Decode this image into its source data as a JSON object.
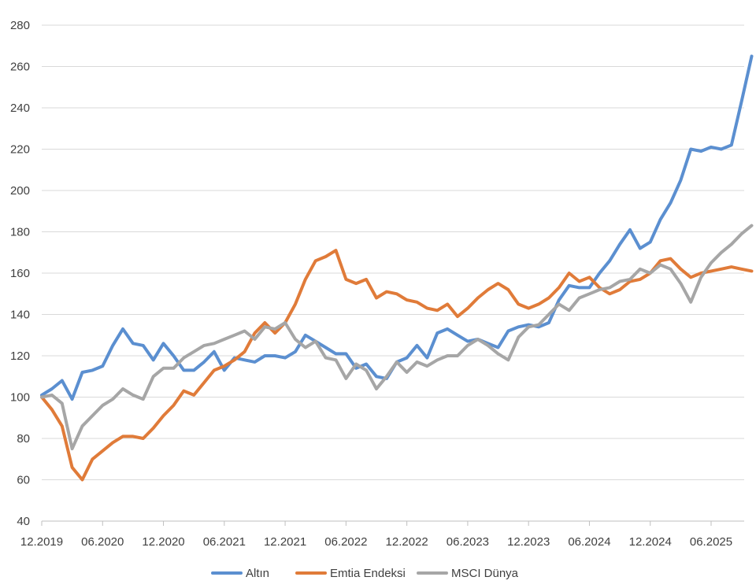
{
  "chart_data": {
    "type": "line",
    "title": "",
    "xlabel": "",
    "ylabel": "",
    "ylim": [
      40,
      280
    ],
    "yticks": [
      40,
      60,
      80,
      100,
      120,
      140,
      160,
      180,
      200,
      220,
      240,
      260,
      280
    ],
    "xlim": [
      "12.2019",
      "10.2025"
    ],
    "xticks": [
      "12.2019",
      "06.2020",
      "12.2020",
      "06.2021",
      "12.2021",
      "06.2022",
      "12.2022",
      "06.2023",
      "12.2023",
      "06.2024",
      "12.2024",
      "06.2025"
    ],
    "grid": "horizontal",
    "legend_position": "bottom",
    "series": [
      {
        "name": "Altın",
        "color": "#5b8fd0",
        "points": [
          [
            "12.2019",
            101
          ],
          [
            "01.2020",
            104
          ],
          [
            "02.2020",
            108
          ],
          [
            "03.2020",
            99
          ],
          [
            "04.2020",
            112
          ],
          [
            "05.2020",
            113
          ],
          [
            "06.2020",
            115
          ],
          [
            "07.2020",
            125
          ],
          [
            "08.2020",
            133
          ],
          [
            "09.2020",
            126
          ],
          [
            "10.2020",
            125
          ],
          [
            "11.2020",
            118
          ],
          [
            "12.2020",
            126
          ],
          [
            "01.2021",
            120
          ],
          [
            "02.2021",
            113
          ],
          [
            "03.2021",
            113
          ],
          [
            "04.2021",
            117
          ],
          [
            "05.2021",
            122
          ],
          [
            "06.2021",
            113
          ],
          [
            "07.2021",
            119
          ],
          [
            "08.2021",
            118
          ],
          [
            "09.2021",
            117
          ],
          [
            "10.2021",
            120
          ],
          [
            "11.2021",
            120
          ],
          [
            "12.2021",
            119
          ],
          [
            "01.2022",
            122
          ],
          [
            "02.2022",
            130
          ],
          [
            "03.2022",
            127
          ],
          [
            "04.2022",
            124
          ],
          [
            "05.2022",
            121
          ],
          [
            "06.2022",
            121
          ],
          [
            "07.2022",
            114
          ],
          [
            "08.2022",
            116
          ],
          [
            "09.2022",
            110
          ],
          [
            "10.2022",
            109
          ],
          [
            "11.2022",
            117
          ],
          [
            "12.2022",
            119
          ],
          [
            "01.2023",
            125
          ],
          [
            "02.2023",
            119
          ],
          [
            "03.2023",
            131
          ],
          [
            "04.2023",
            133
          ],
          [
            "05.2023",
            130
          ],
          [
            "06.2023",
            127
          ],
          [
            "07.2023",
            128
          ],
          [
            "08.2023",
            126
          ],
          [
            "09.2023",
            124
          ],
          [
            "10.2023",
            132
          ],
          [
            "11.2023",
            134
          ],
          [
            "12.2023",
            135
          ],
          [
            "01.2024",
            134
          ],
          [
            "02.2024",
            136
          ],
          [
            "03.2024",
            147
          ],
          [
            "04.2024",
            154
          ],
          [
            "05.2024",
            153
          ],
          [
            "06.2024",
            153
          ],
          [
            "07.2024",
            160
          ],
          [
            "08.2024",
            166
          ],
          [
            "09.2024",
            174
          ],
          [
            "10.2024",
            181
          ],
          [
            "11.2024",
            172
          ],
          [
            "12.2024",
            175
          ],
          [
            "01.2025",
            186
          ],
          [
            "02.2025",
            194
          ],
          [
            "03.2025",
            205
          ],
          [
            "04.2025",
            220
          ],
          [
            "05.2025",
            219
          ],
          [
            "06.2025",
            221
          ],
          [
            "07.2025",
            220
          ],
          [
            "08.2025",
            222
          ],
          [
            "09.2025",
            243
          ],
          [
            "10.2025",
            265
          ]
        ]
      },
      {
        "name": "Emtia Endeksi",
        "color": "#e07b39",
        "points": [
          [
            "12.2019",
            100
          ],
          [
            "01.2020",
            94
          ],
          [
            "02.2020",
            86
          ],
          [
            "03.2020",
            66
          ],
          [
            "04.2020",
            60
          ],
          [
            "05.2020",
            70
          ],
          [
            "06.2020",
            74
          ],
          [
            "07.2020",
            78
          ],
          [
            "08.2020",
            81
          ],
          [
            "09.2020",
            81
          ],
          [
            "10.2020",
            80
          ],
          [
            "11.2020",
            85
          ],
          [
            "12.2020",
            91
          ],
          [
            "01.2021",
            96
          ],
          [
            "02.2021",
            103
          ],
          [
            "03.2021",
            101
          ],
          [
            "04.2021",
            107
          ],
          [
            "05.2021",
            113
          ],
          [
            "06.2021",
            115
          ],
          [
            "07.2021",
            118
          ],
          [
            "08.2021",
            122
          ],
          [
            "09.2021",
            131
          ],
          [
            "10.2021",
            136
          ],
          [
            "11.2021",
            131
          ],
          [
            "12.2021",
            136
          ],
          [
            "01.2022",
            145
          ],
          [
            "02.2022",
            157
          ],
          [
            "03.2022",
            166
          ],
          [
            "04.2022",
            168
          ],
          [
            "05.2022",
            171
          ],
          [
            "06.2022",
            157
          ],
          [
            "07.2022",
            155
          ],
          [
            "08.2022",
            157
          ],
          [
            "09.2022",
            148
          ],
          [
            "10.2022",
            151
          ],
          [
            "11.2022",
            150
          ],
          [
            "12.2022",
            147
          ],
          [
            "01.2023",
            146
          ],
          [
            "02.2023",
            143
          ],
          [
            "03.2023",
            142
          ],
          [
            "04.2023",
            145
          ],
          [
            "05.2023",
            139
          ],
          [
            "06.2023",
            143
          ],
          [
            "07.2023",
            148
          ],
          [
            "08.2023",
            152
          ],
          [
            "09.2023",
            155
          ],
          [
            "10.2023",
            152
          ],
          [
            "11.2023",
            145
          ],
          [
            "12.2023",
            143
          ],
          [
            "01.2024",
            145
          ],
          [
            "02.2024",
            148
          ],
          [
            "03.2024",
            153
          ],
          [
            "04.2024",
            160
          ],
          [
            "05.2024",
            156
          ],
          [
            "06.2024",
            158
          ],
          [
            "07.2024",
            153
          ],
          [
            "08.2024",
            150
          ],
          [
            "09.2024",
            152
          ],
          [
            "10.2024",
            156
          ],
          [
            "11.2024",
            157
          ],
          [
            "12.2024",
            160
          ],
          [
            "01.2025",
            166
          ],
          [
            "02.2025",
            167
          ],
          [
            "03.2025",
            162
          ],
          [
            "04.2025",
            158
          ],
          [
            "05.2025",
            160
          ],
          [
            "06.2025",
            161
          ],
          [
            "07.2025",
            162
          ],
          [
            "08.2025",
            163
          ],
          [
            "09.2025",
            162
          ],
          [
            "10.2025",
            161
          ]
        ]
      },
      {
        "name": "MSCI Dünya",
        "color": "#a6a6a6",
        "points": [
          [
            "12.2019",
            100
          ],
          [
            "01.2020",
            101
          ],
          [
            "02.2020",
            97
          ],
          [
            "03.2020",
            75
          ],
          [
            "04.2020",
            86
          ],
          [
            "05.2020",
            91
          ],
          [
            "06.2020",
            96
          ],
          [
            "07.2020",
            99
          ],
          [
            "08.2020",
            104
          ],
          [
            "09.2020",
            101
          ],
          [
            "10.2020",
            99
          ],
          [
            "11.2020",
            110
          ],
          [
            "12.2020",
            114
          ],
          [
            "01.2021",
            114
          ],
          [
            "02.2021",
            119
          ],
          [
            "03.2021",
            122
          ],
          [
            "04.2021",
            125
          ],
          [
            "05.2021",
            126
          ],
          [
            "06.2021",
            128
          ],
          [
            "07.2021",
            130
          ],
          [
            "08.2021",
            132
          ],
          [
            "09.2021",
            128
          ],
          [
            "10.2021",
            134
          ],
          [
            "11.2021",
            133
          ],
          [
            "12.2021",
            136
          ],
          [
            "01.2022",
            128
          ],
          [
            "02.2022",
            124
          ],
          [
            "03.2022",
            127
          ],
          [
            "04.2022",
            119
          ],
          [
            "05.2022",
            118
          ],
          [
            "06.2022",
            109
          ],
          [
            "07.2022",
            116
          ],
          [
            "08.2022",
            113
          ],
          [
            "09.2022",
            104
          ],
          [
            "10.2022",
            110
          ],
          [
            "11.2022",
            117
          ],
          [
            "12.2022",
            112
          ],
          [
            "01.2023",
            117
          ],
          [
            "02.2023",
            115
          ],
          [
            "03.2023",
            118
          ],
          [
            "04.2023",
            120
          ],
          [
            "05.2023",
            120
          ],
          [
            "06.2023",
            125
          ],
          [
            "07.2023",
            128
          ],
          [
            "08.2023",
            125
          ],
          [
            "09.2023",
            121
          ],
          [
            "10.2023",
            118
          ],
          [
            "11.2023",
            129
          ],
          [
            "12.2023",
            134
          ],
          [
            "01.2024",
            135
          ],
          [
            "02.2024",
            140
          ],
          [
            "03.2024",
            145
          ],
          [
            "04.2024",
            142
          ],
          [
            "05.2024",
            148
          ],
          [
            "06.2024",
            150
          ],
          [
            "07.2024",
            152
          ],
          [
            "08.2024",
            153
          ],
          [
            "09.2024",
            156
          ],
          [
            "10.2024",
            157
          ],
          [
            "11.2024",
            162
          ],
          [
            "12.2024",
            160
          ],
          [
            "01.2025",
            164
          ],
          [
            "02.2025",
            162
          ],
          [
            "03.2025",
            155
          ],
          [
            "04.2025",
            146
          ],
          [
            "05.2025",
            158
          ],
          [
            "06.2025",
            165
          ],
          [
            "07.2025",
            170
          ],
          [
            "08.2025",
            174
          ],
          [
            "09.2025",
            179
          ],
          [
            "10.2025",
            183
          ]
        ]
      }
    ]
  }
}
